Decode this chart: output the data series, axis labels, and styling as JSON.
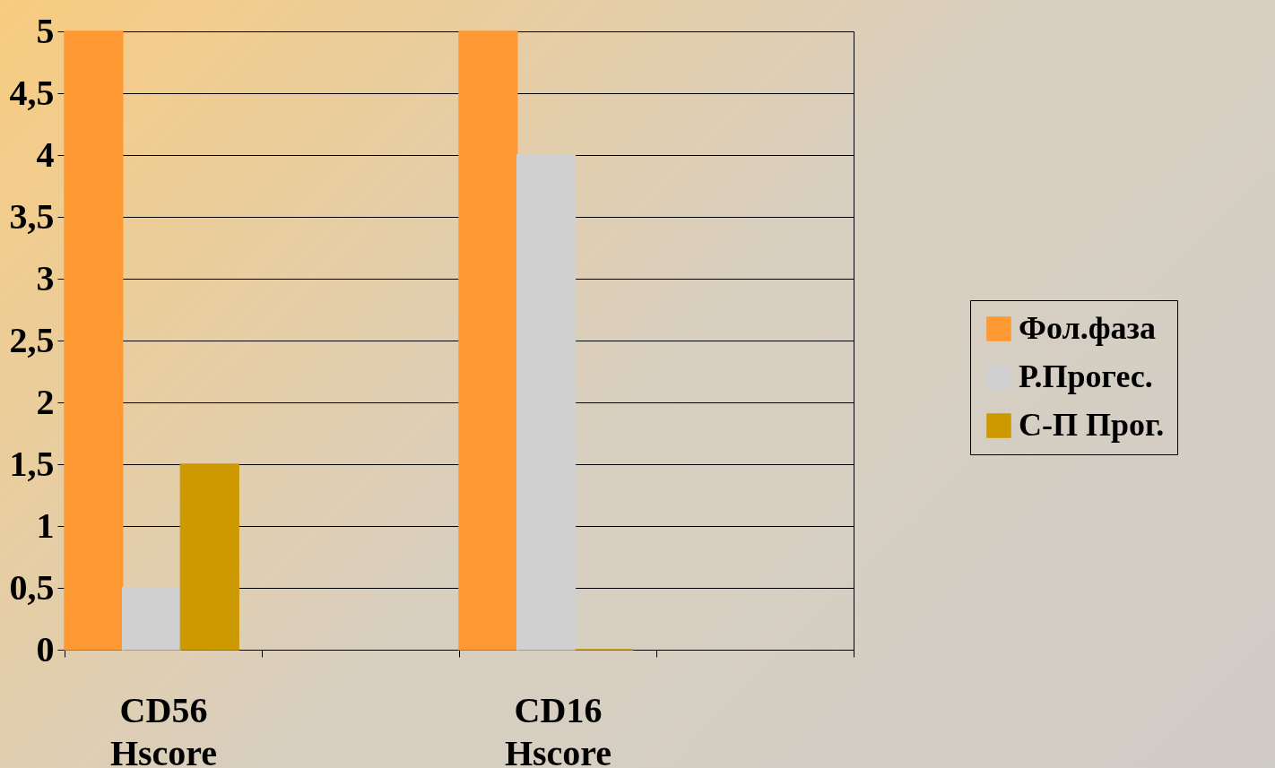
{
  "chart_data": {
    "type": "bar",
    "categories": [
      "CD56 Hscore",
      null,
      "CD16 Hscore",
      null
    ],
    "series": [
      {
        "name": "Фол.фаза",
        "color": "#ff9933",
        "values": [
          5,
          null,
          5,
          null
        ]
      },
      {
        "name": "Р.Прогес.",
        "color": "#d0d0d0",
        "values": [
          0.5,
          null,
          4,
          null
        ]
      },
      {
        "name": "С-П Прог.",
        "color": "#cc9900",
        "values": [
          1.5,
          null,
          0,
          null
        ]
      }
    ],
    "ylim": [
      0,
      5
    ],
    "yticks": [
      0,
      {
        "value": 0.5,
        "label": "0,5"
      },
      1,
      {
        "value": 1.5,
        "label": "1,5"
      },
      2,
      {
        "value": 2.5,
        "label": "2,5"
      },
      3,
      {
        "value": 3.5,
        "label": "3,5"
      },
      4,
      {
        "value": 4.5,
        "label": "4,5"
      },
      5
    ],
    "grid": "y",
    "legend": "right"
  }
}
